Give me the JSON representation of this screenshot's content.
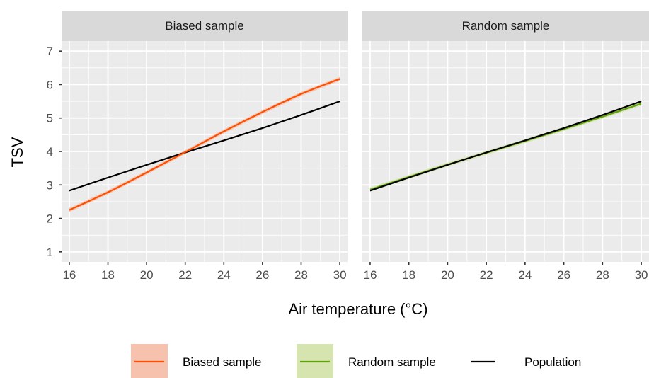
{
  "chart_data": {
    "type": "line",
    "xlabel": "Air temperature (°C)",
    "ylabel": "TSV",
    "xlim": [
      15.6,
      30.4
    ],
    "ylim": [
      0.7,
      7.3
    ],
    "x_ticks": [
      16,
      18,
      20,
      22,
      24,
      26,
      28,
      30
    ],
    "y_ticks": [
      1,
      2,
      3,
      4,
      5,
      6,
      7
    ],
    "grid": true,
    "legend_position": "bottom",
    "colors": {
      "biased": "#ff4e00",
      "biased_band": "#f6c2ad",
      "random": "#5fa30a",
      "random_band": "#d6e4b0",
      "population": "#000000",
      "panel_bg": "#ebebeb",
      "strip_bg": "#d9d9d9",
      "grid": "#ffffff"
    },
    "legend": [
      {
        "key": "biased",
        "label": "Biased sample"
      },
      {
        "key": "random",
        "label": "Random sample"
      },
      {
        "key": "population",
        "label": "Population"
      }
    ],
    "panels": [
      {
        "title": "Biased sample",
        "series": [
          {
            "key": "population",
            "x": [
              16,
              18,
              20,
              22,
              24,
              26,
              28,
              30
            ],
            "y": [
              2.83,
              3.22,
              3.6,
              3.97,
              4.33,
              4.7,
              5.09,
              5.5
            ]
          },
          {
            "key": "biased",
            "x": [
              16,
              18,
              20,
              22,
              24,
              26,
              28,
              30
            ],
            "y": [
              2.25,
              2.78,
              3.37,
              3.98,
              4.6,
              5.18,
              5.72,
              6.17
            ],
            "band": 0.06
          }
        ]
      },
      {
        "title": "Random sample",
        "series": [
          {
            "key": "random",
            "x": [
              16,
              18,
              20,
              22,
              24,
              26,
              28,
              30
            ],
            "y": [
              2.86,
              3.24,
              3.61,
              3.96,
              4.31,
              4.67,
              5.04,
              5.43
            ],
            "band": 0.06
          },
          {
            "key": "population",
            "x": [
              16,
              18,
              20,
              22,
              24,
              26,
              28,
              30
            ],
            "y": [
              2.83,
              3.22,
              3.6,
              3.97,
              4.33,
              4.7,
              5.09,
              5.5
            ]
          }
        ]
      }
    ]
  }
}
